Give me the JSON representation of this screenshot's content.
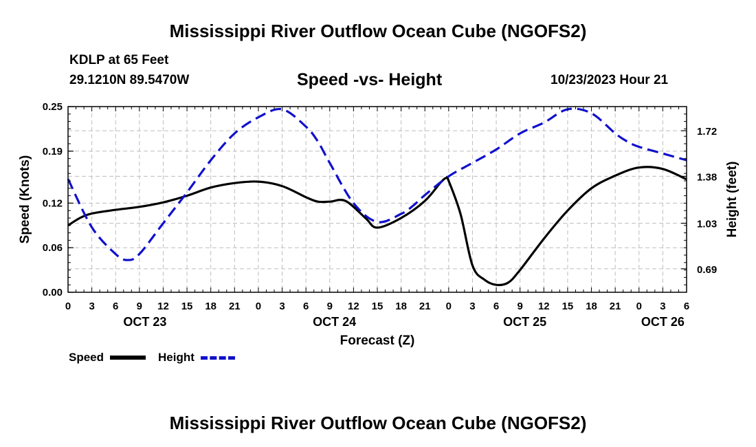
{
  "page": {
    "title": "Mississippi River Outflow Ocean Cube (NGOFS2)",
    "title_bottom": "Mississippi River Outflow Ocean Cube (NGOFS2)"
  },
  "station": {
    "name": "KDLP at 65 Feet",
    "coords": "29.1210N  89.5470W",
    "datetime": "10/23/2023 Hour 21"
  },
  "legend": {
    "speed_label": "Speed",
    "height_label": "Height"
  },
  "chart_data": {
    "type": "line",
    "title": "Speed -vs- Height",
    "xlabel": "Forecast (Z)",
    "ylabel_left": "Speed (Knots)",
    "ylabel_right": "Height (feet)",
    "grid": true,
    "x_range": [
      0,
      78
    ],
    "x_ticks": [
      0,
      3,
      6,
      9,
      12,
      15,
      18,
      21,
      24,
      27,
      30,
      33,
      36,
      39,
      42,
      45,
      48,
      51,
      54,
      57,
      60,
      63,
      66,
      69,
      72,
      75,
      78
    ],
    "x_tick_labels": [
      "0",
      "3",
      "6",
      "9",
      "12",
      "15",
      "18",
      "21",
      "0",
      "3",
      "6",
      "9",
      "12",
      "15",
      "18",
      "21",
      "0",
      "3",
      "6",
      "9",
      "12",
      "15",
      "18",
      "21",
      "0",
      "3",
      "6"
    ],
    "date_labels": [
      {
        "label": "OCT 23",
        "x": 9.7
      },
      {
        "label": "OCT 24",
        "x": 33.6
      },
      {
        "label": "OCT 25",
        "x": 57.6
      },
      {
        "label": "OCT 26",
        "x": 75
      }
    ],
    "ylim_left": [
      0,
      0.25
    ],
    "yticks_left": [
      0.0,
      0.06,
      0.12,
      0.19,
      0.25
    ],
    "ytick_labels_left": [
      "0.00",
      "0.06",
      "0.12",
      "0.19",
      "0.25"
    ],
    "ylim_right": [
      0.515,
      1.9
    ],
    "yticks_right": [
      0.69,
      1.03,
      1.38,
      1.72
    ],
    "ytick_labels_right": [
      "0.69",
      "1.03",
      "1.38",
      "1.72"
    ],
    "series": [
      {
        "name": "Speed",
        "axis": "left",
        "color": "#000000",
        "style": "solid",
        "x": [
          0,
          1.5,
          3,
          6,
          9,
          12,
          15,
          18,
          21,
          24,
          27,
          30,
          31.5,
          33,
          35,
          37.5,
          39,
          42,
          45,
          47,
          47.7,
          48,
          49.5,
          51,
          52.5,
          54,
          55.5,
          57,
          60,
          63,
          66,
          69,
          72,
          75,
          78
        ],
        "y": [
          0.09,
          0.1,
          0.106,
          0.111,
          0.115,
          0.121,
          0.13,
          0.141,
          0.147,
          0.149,
          0.143,
          0.128,
          0.122,
          0.122,
          0.123,
          0.1,
          0.087,
          0.1,
          0.123,
          0.148,
          0.154,
          0.15,
          0.105,
          0.036,
          0.017,
          0.01,
          0.013,
          0.03,
          0.072,
          0.11,
          0.14,
          0.157,
          0.168,
          0.166,
          0.152
        ]
      },
      {
        "name": "Height",
        "axis": "right",
        "color": "#1010cc",
        "style": "dashed",
        "x": [
          0,
          3,
          6,
          7.5,
          9,
          12,
          15,
          18,
          21,
          24,
          27,
          30,
          31.5,
          33,
          36,
          39,
          42,
          43.5,
          45,
          48,
          51,
          54,
          57,
          60,
          63,
          66,
          69,
          70.5,
          72,
          75,
          78
        ],
        "y": [
          1.36,
          1.0,
          0.8,
          0.755,
          0.8,
          1.03,
          1.26,
          1.5,
          1.7,
          1.82,
          1.88,
          1.75,
          1.64,
          1.48,
          1.18,
          1.04,
          1.1,
          1.16,
          1.24,
          1.38,
          1.48,
          1.58,
          1.7,
          1.78,
          1.88,
          1.85,
          1.7,
          1.64,
          1.6,
          1.55,
          1.5
        ]
      }
    ]
  }
}
